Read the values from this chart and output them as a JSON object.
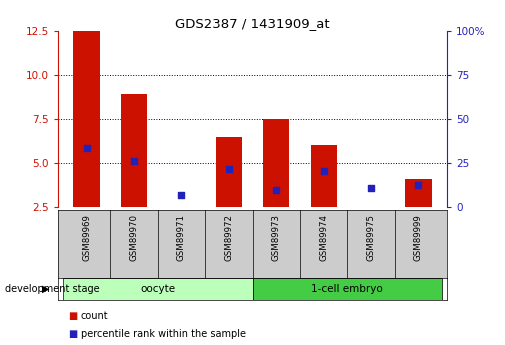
{
  "title": "GDS2387 / 1431909_at",
  "samples": [
    "GSM89969",
    "GSM89970",
    "GSM89971",
    "GSM89972",
    "GSM89973",
    "GSM89974",
    "GSM89975",
    "GSM89999"
  ],
  "count_values": [
    12.5,
    8.9,
    2.5,
    6.5,
    7.5,
    6.0,
    2.5,
    4.1
  ],
  "count_bottom": [
    2.5,
    2.5,
    2.5,
    2.5,
    2.5,
    2.5,
    2.5,
    2.5
  ],
  "percentile_values": [
    5.85,
    5.1,
    3.2,
    4.65,
    3.45,
    4.55,
    3.6,
    3.75
  ],
  "ylim_left": [
    2.5,
    12.5
  ],
  "ylim_right": [
    0,
    100
  ],
  "yticks_left": [
    2.5,
    5.0,
    7.5,
    10.0,
    12.5
  ],
  "yticks_right": [
    0,
    25,
    50,
    75,
    100
  ],
  "groups": [
    {
      "label": "oocyte",
      "start": 0,
      "end": 4,
      "color": "#bbffbb"
    },
    {
      "label": "1-cell embryo",
      "start": 4,
      "end": 8,
      "color": "#44cc44"
    }
  ],
  "group_row_label": "development stage",
  "bar_color": "#cc1100",
  "dot_color": "#2222bb",
  "bar_width": 0.55,
  "grid_color": "black",
  "tick_color_left": "#cc1100",
  "tick_color_right": "#2222bb",
  "bg_color_plot": "#ffffff",
  "bg_color_xticklabels": "#cccccc",
  "legend_items": [
    {
      "color": "#cc1100",
      "label": "count"
    },
    {
      "color": "#2222bb",
      "label": "percentile rank within the sample"
    }
  ]
}
